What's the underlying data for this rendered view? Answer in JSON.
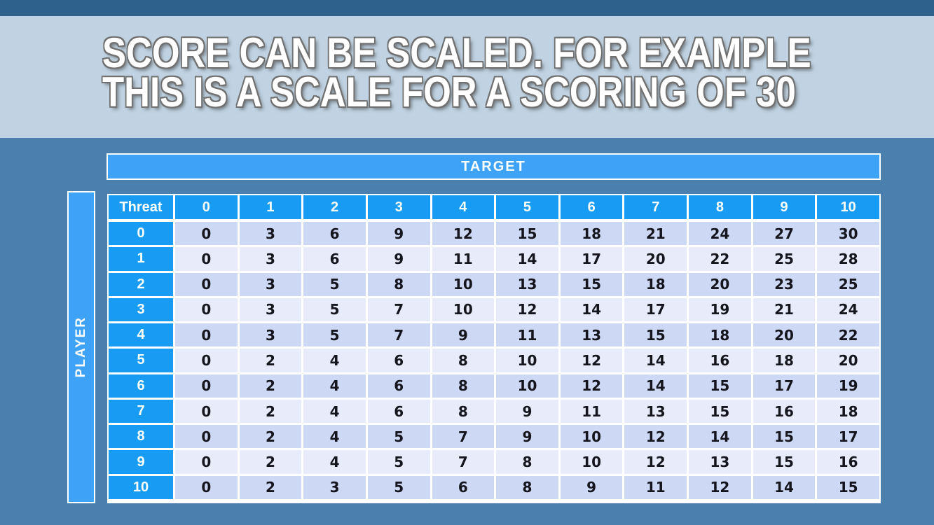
{
  "title": {
    "line1": "SCORE CAN BE SCALED. FOR EXAMPLE",
    "line2": "THIS IS A SCALE FOR A SCORING OF 30"
  },
  "table": {
    "target_label": "TARGET",
    "player_label": "PLAYER",
    "corner_label": "Threat",
    "column_headers": [
      "0",
      "1",
      "2",
      "3",
      "4",
      "5",
      "6",
      "7",
      "8",
      "9",
      "10"
    ],
    "row_headers": [
      "0",
      "1",
      "2",
      "3",
      "4",
      "5",
      "6",
      "7",
      "8",
      "9",
      "10"
    ],
    "rows": [
      [
        0,
        3,
        6,
        9,
        12,
        15,
        18,
        21,
        24,
        27,
        30
      ],
      [
        0,
        3,
        6,
        9,
        11,
        14,
        17,
        20,
        22,
        25,
        28
      ],
      [
        0,
        3,
        5,
        8,
        10,
        13,
        15,
        18,
        20,
        23,
        25
      ],
      [
        0,
        3,
        5,
        7,
        10,
        12,
        14,
        17,
        19,
        21,
        24
      ],
      [
        0,
        3,
        5,
        7,
        9,
        11,
        13,
        15,
        18,
        20,
        22
      ],
      [
        0,
        2,
        4,
        6,
        8,
        10,
        12,
        14,
        16,
        18,
        20
      ],
      [
        0,
        2,
        4,
        6,
        8,
        10,
        12,
        14,
        15,
        17,
        19
      ],
      [
        0,
        2,
        4,
        6,
        8,
        9,
        11,
        13,
        15,
        16,
        18
      ],
      [
        0,
        2,
        4,
        5,
        7,
        9,
        10,
        12,
        14,
        15,
        17
      ],
      [
        0,
        2,
        4,
        5,
        7,
        8,
        10,
        12,
        13,
        15,
        16
      ],
      [
        0,
        2,
        3,
        5,
        6,
        8,
        9,
        11,
        12,
        14,
        15
      ]
    ]
  },
  "colors": {
    "banner_blue": "#3ea2f6",
    "header_blue": "#189cf3",
    "row_stripe_dark": "#ccd8f4",
    "row_stripe_light": "#e7ebfa",
    "top_strip": "#2f618d",
    "title_band": "#d6e2eb",
    "cell_text": "#15151d"
  }
}
